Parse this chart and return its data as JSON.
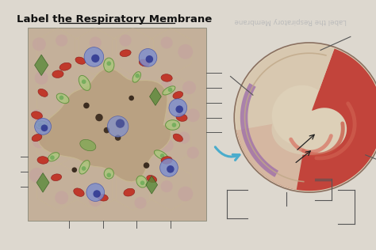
{
  "title": "Label the Respiratory Membrane",
  "title_mirror": "Label the Respiratory Membrane",
  "bg_color": "#ddd8cf",
  "title_fontsize": 9.5,
  "fig_width": 4.74,
  "fig_height": 3.16,
  "left_bg": "#c4b09a",
  "left_tissue_bg": "#c8b598",
  "alveolus_air_color": "#b8a080",
  "cell_wall_color": "#d4c4a8",
  "rbc_color": "#c0392b",
  "rbc_edge": "#8b1a1a",
  "blue_cell_color": "#7986cb",
  "blue_cell_edge": "#3949ab",
  "green_cell_color": "#8fbc6a",
  "green_cell_edge": "#4a7a2a",
  "green_diamond_color": "#5a8a3a",
  "dark_spot_color": "#2d1f14",
  "pink_dot_color": "#c09090",
  "right_outer_color": "#d8c8b0",
  "right_red_color": "#c0402a",
  "right_pink_color": "#e8a090",
  "right_beige_color": "#d8c0a8",
  "right_purple_color": "#9b6aaa",
  "right_circle_edge": "#8a7060",
  "arrow_color": "#4aaccc",
  "line_color": "#555555"
}
